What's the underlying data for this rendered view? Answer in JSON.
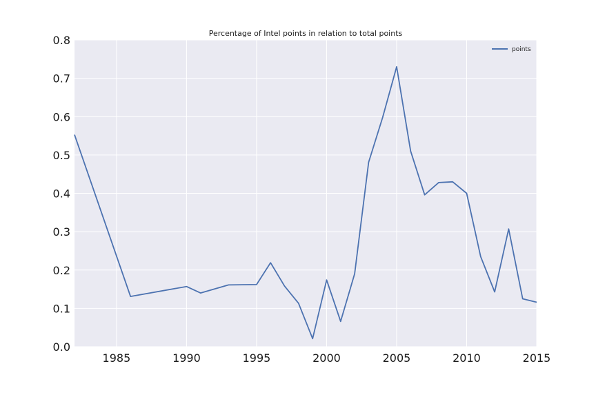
{
  "chart_data": {
    "type": "line",
    "title": "Percentage of Intel points in relation to total points",
    "xlabel": "",
    "ylabel": "",
    "xlim": [
      1982,
      2015
    ],
    "ylim": [
      0.0,
      0.8
    ],
    "xticks": [
      1985,
      1990,
      1995,
      2000,
      2005,
      2010,
      2015
    ],
    "xtick_labels": [
      "1985",
      "1990",
      "1995",
      "2000",
      "2005",
      "2010",
      "2015"
    ],
    "yticks": [
      0.0,
      0.1,
      0.2,
      0.3,
      0.4,
      0.5,
      0.6,
      0.7,
      0.8
    ],
    "ytick_labels": [
      "0.0",
      "0.1",
      "0.2",
      "0.3",
      "0.4",
      "0.5",
      "0.6",
      "0.7",
      "0.8"
    ],
    "grid": true,
    "legend_position": "top-right",
    "series": [
      {
        "name": "points",
        "color": "#4c72b0",
        "x": [
          1982,
          1986,
          1990,
          1991,
          1993,
          1995,
          1996,
          1997,
          1998,
          1999,
          2000,
          2001,
          2002,
          2003,
          2004,
          2005,
          2006,
          2007,
          2008,
          2009,
          2010,
          2011,
          2012,
          2013,
          2014,
          2015
        ],
        "values": [
          0.553,
          0.131,
          0.157,
          0.14,
          0.161,
          0.162,
          0.219,
          0.158,
          0.113,
          0.021,
          0.174,
          0.066,
          0.19,
          0.481,
          0.598,
          0.73,
          0.51,
          0.396,
          0.428,
          0.43,
          0.4,
          0.235,
          0.143,
          0.307,
          0.125,
          0.116
        ]
      }
    ]
  },
  "colors": {
    "plot_background": "#eaeaf2",
    "grid": "#ffffff",
    "line": "#4c72b0"
  }
}
